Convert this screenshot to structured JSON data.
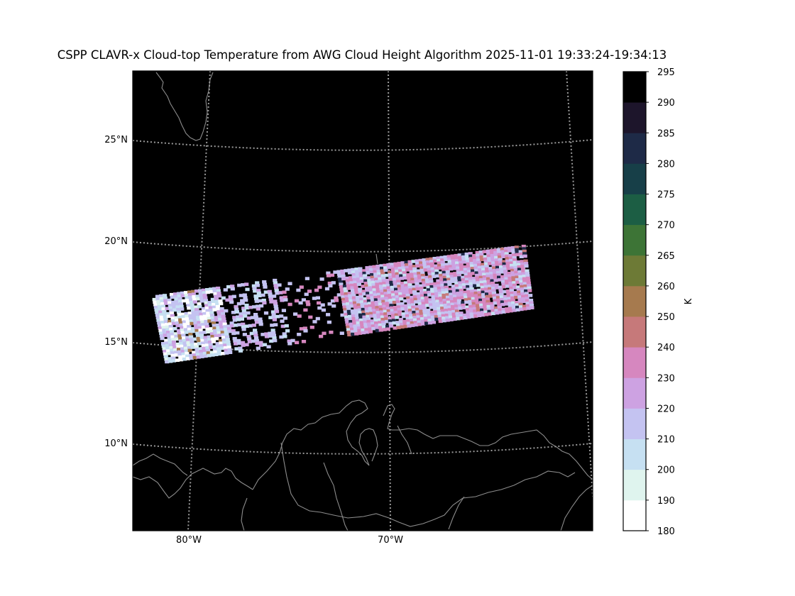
{
  "title": "CSPP CLAVR-x Cloud-top Temperature from AWG Cloud Height Algorithm 2025-11-01 19:33:24-19:34:13",
  "map": {
    "lat_labels": [
      "25°N",
      "20°N",
      "15°N",
      "10°N"
    ],
    "lon_labels": [
      "80°W",
      "70°W"
    ],
    "background": "#000000",
    "coastline_color": "#8c8c8c",
    "gridline_color": "#9a9a9a"
  },
  "colorbar": {
    "label": "K",
    "ticks": [
      "295",
      "290",
      "285",
      "280",
      "275",
      "270",
      "265",
      "260",
      "250",
      "240",
      "230",
      "220",
      "210",
      "200",
      "190",
      "180"
    ],
    "bins": [
      {
        "range": "180-190",
        "color": "#ffffff"
      },
      {
        "range": "190-200",
        "color": "#dff4ee"
      },
      {
        "range": "200-210",
        "color": "#c6e0f2"
      },
      {
        "range": "210-220",
        "color": "#c4c3f1"
      },
      {
        "range": "220-230",
        "color": "#cda2e2"
      },
      {
        "range": "230-240",
        "color": "#d687bf"
      },
      {
        "range": "240-250",
        "color": "#c6797a"
      },
      {
        "range": "250-260",
        "color": "#a67a4e"
      },
      {
        "range": "260-265",
        "color": "#6d7a36"
      },
      {
        "range": "265-270",
        "color": "#3d7436"
      },
      {
        "range": "270-275",
        "color": "#1c5e44"
      },
      {
        "range": "275-280",
        "color": "#173f48"
      },
      {
        "range": "280-285",
        "color": "#1e2a47"
      },
      {
        "range": "285-290",
        "color": "#1d152b"
      },
      {
        "range": "290-295",
        "color": "#000000"
      }
    ]
  }
}
